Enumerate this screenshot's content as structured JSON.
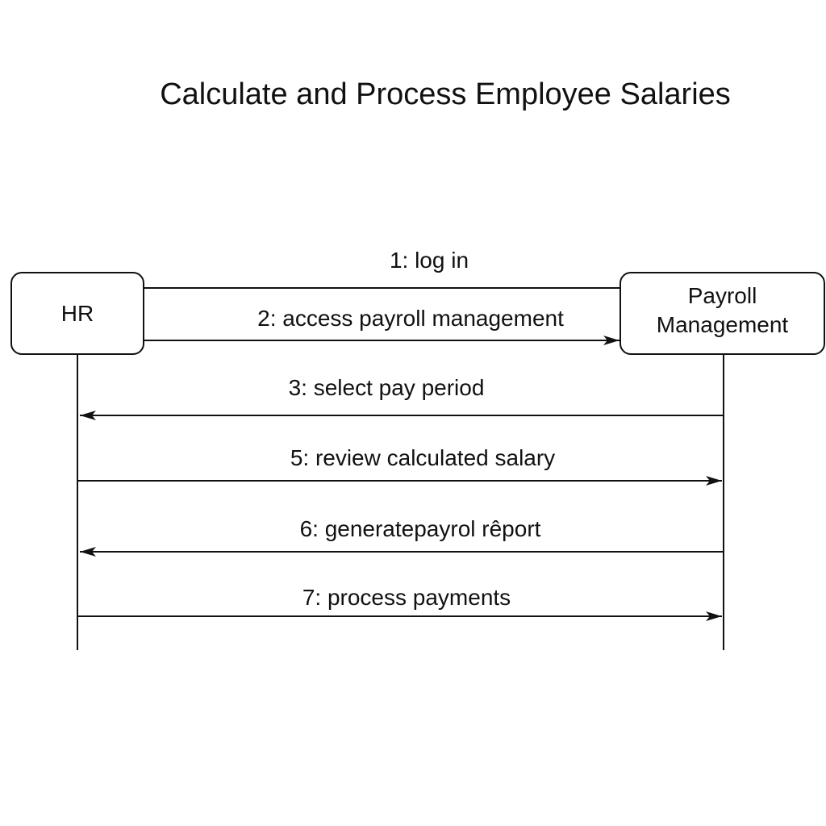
{
  "diagram": {
    "title": "Calculate and Process Employee Salaries",
    "participants": [
      {
        "id": "hr",
        "label": "HR"
      },
      {
        "id": "payroll",
        "label": "Payroll\nManagement"
      }
    ],
    "messages": [
      {
        "label": "1: log in",
        "from": "hr",
        "to": "payroll"
      },
      {
        "label": "2: access payroll management",
        "from": "hr",
        "to": "payroll"
      },
      {
        "label": "3: select pay period",
        "from": "payroll",
        "to": "hr"
      },
      {
        "label": "5: review calculated salary",
        "from": "hr",
        "to": "payroll"
      },
      {
        "label": "6: generatepayrol rêport",
        "from": "payroll",
        "to": "hr"
      },
      {
        "label": "7: process payments",
        "from": "hr",
        "to": "payroll"
      }
    ]
  }
}
